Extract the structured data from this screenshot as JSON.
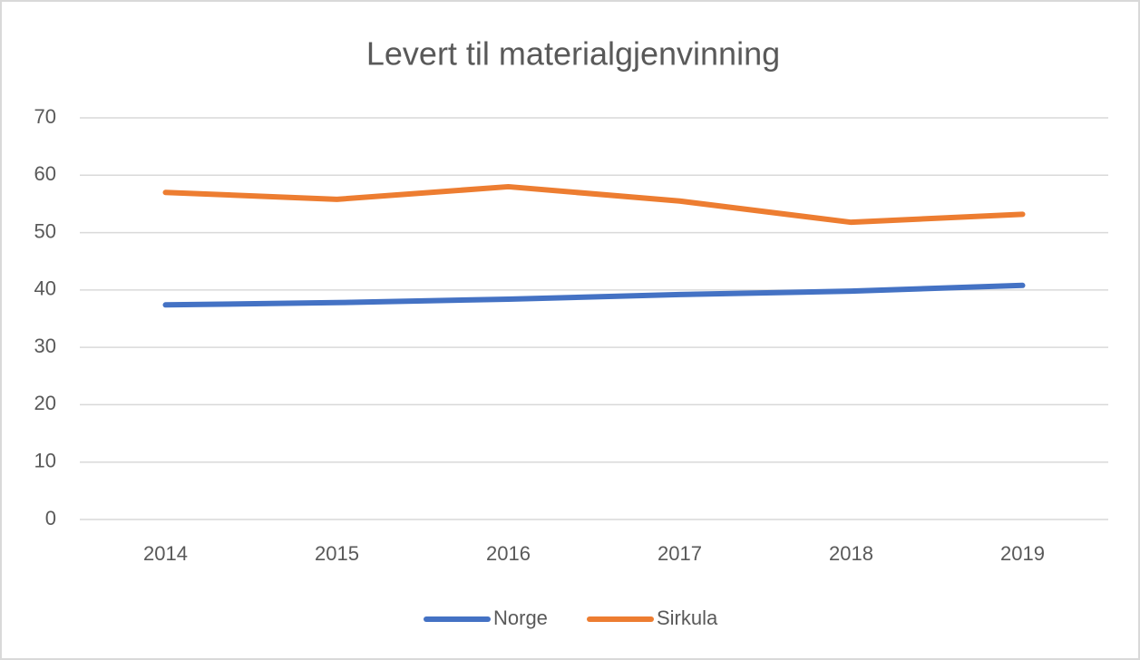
{
  "chart_data": {
    "type": "line",
    "title": "Levert til materialgjenvinning",
    "categories": [
      "2014",
      "2015",
      "2016",
      "2017",
      "2018",
      "2019"
    ],
    "series": [
      {
        "name": "Norge",
        "color": "#4472c4",
        "values": [
          37.4,
          37.8,
          38.4,
          39.2,
          39.8,
          40.8
        ]
      },
      {
        "name": "Sirkula",
        "color": "#ed7d31",
        "values": [
          57.0,
          55.8,
          58.0,
          55.5,
          51.8,
          53.2
        ]
      }
    ],
    "ylim": [
      0,
      70
    ],
    "yticks": [
      0,
      10,
      20,
      30,
      40,
      50,
      60,
      70
    ],
    "grid": true,
    "legend": "bottom"
  }
}
